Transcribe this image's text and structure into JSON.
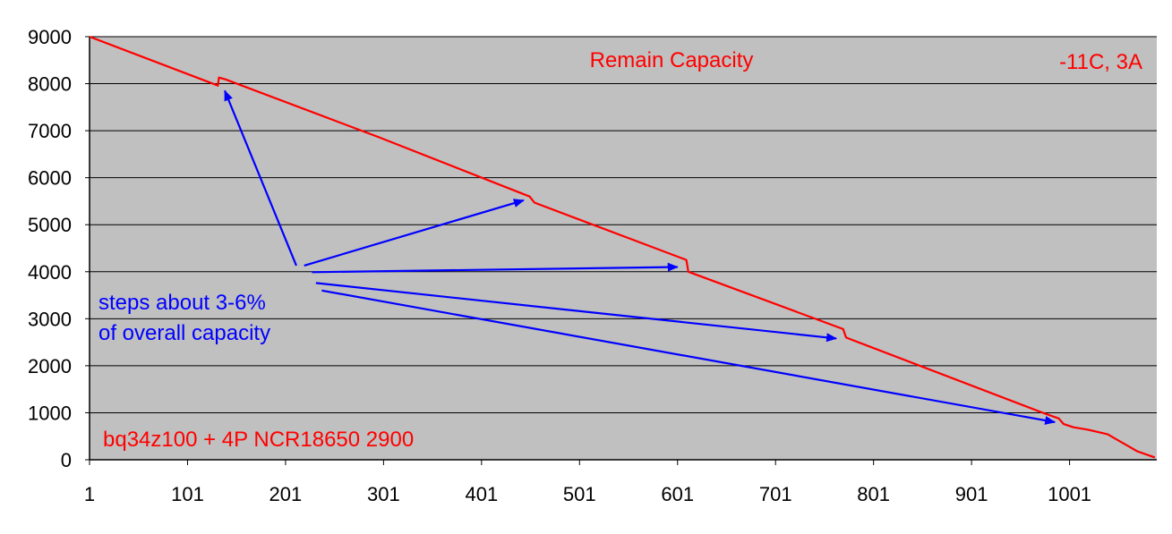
{
  "chart_data": {
    "type": "line",
    "title": "Remain Capacity",
    "xlabel": "",
    "ylabel": "",
    "xlim": [
      1,
      1090
    ],
    "ylim": [
      0,
      9000
    ],
    "x_ticks": [
      "1",
      "101",
      "201",
      "301",
      "401",
      "501",
      "601",
      "701",
      "801",
      "901",
      "1001"
    ],
    "y_ticks": [
      "0",
      "1000",
      "2000",
      "3000",
      "4000",
      "5000",
      "6000",
      "7000",
      "8000",
      "9000"
    ],
    "grid": true,
    "legend": "none",
    "colors": {
      "series": "#ff0000",
      "plot_background": "#c0c0c0",
      "annotation": "#0000ff",
      "grid": "#000000"
    },
    "annotations": {
      "condition": "-11C, 3A",
      "device": "bq34z100 + 4P NCR18650 2900",
      "steps_line1": "steps about 3-6%",
      "steps_line2": "of overall capacity"
    },
    "series": [
      {
        "points": [
          [
            1,
            9000
          ],
          [
            132,
            7960
          ],
          [
            133,
            8130
          ],
          [
            140,
            8090
          ],
          [
            295,
            6870
          ],
          [
            450,
            5600
          ],
          [
            455,
            5470
          ],
          [
            610,
            4250
          ],
          [
            612,
            4000
          ],
          [
            770,
            2780
          ],
          [
            773,
            2600
          ],
          [
            975,
            990
          ],
          [
            990,
            880
          ],
          [
            995,
            760
          ],
          [
            1005,
            690
          ],
          [
            1020,
            640
          ],
          [
            1040,
            540
          ],
          [
            1050,
            420
          ],
          [
            1060,
            300
          ],
          [
            1070,
            180
          ],
          [
            1088,
            50
          ]
        ]
      }
    ],
    "arrows": [
      {
        "from": [
          212,
          4130
        ],
        "to": [
          139,
          7850
        ]
      },
      {
        "from": [
          220,
          4130
        ],
        "to": [
          444,
          5520
        ]
      },
      {
        "from": [
          228,
          3990
        ],
        "to": [
          601,
          4100
        ]
      },
      {
        "from": [
          232,
          3760
        ],
        "to": [
          763,
          2580
        ]
      },
      {
        "from": [
          238,
          3600
        ],
        "to": [
          986,
          800
        ]
      }
    ]
  }
}
